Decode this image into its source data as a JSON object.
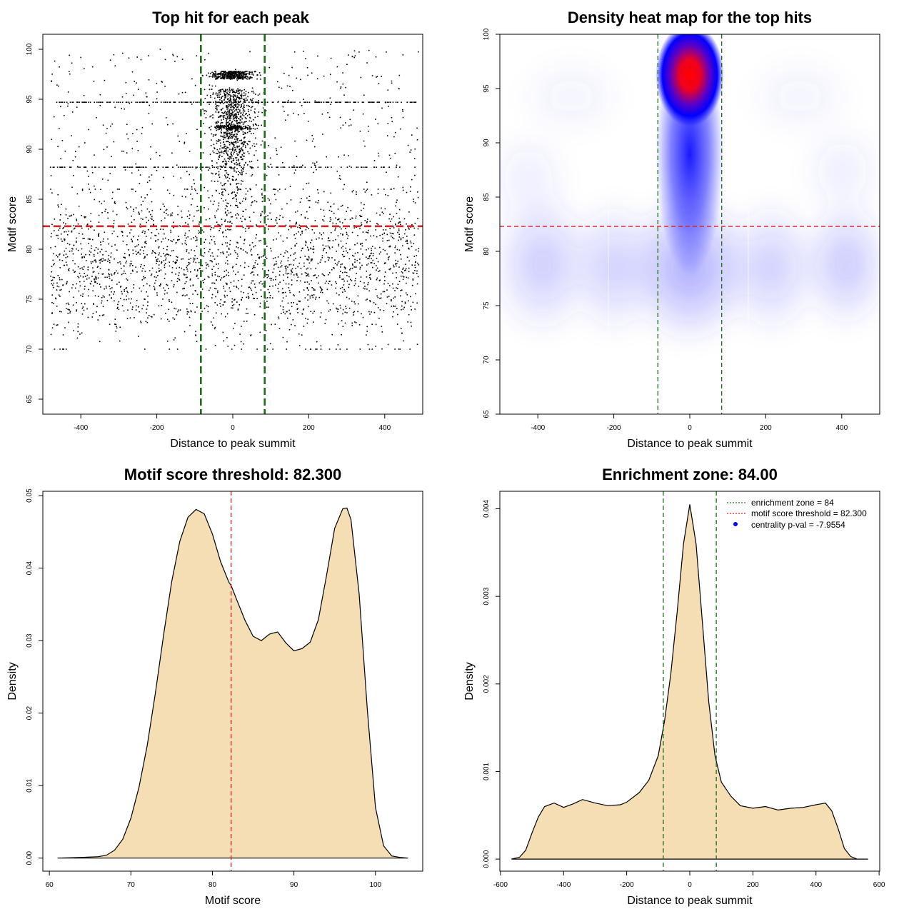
{
  "chart_data": [
    {
      "type": "scatter",
      "title": "Top hit for each peak",
      "xlabel": "Distance to peak summit",
      "ylabel": "Motif score",
      "xlim": [
        -500,
        500
      ],
      "ylim": [
        63.5,
        101.5
      ],
      "x_ticks": [
        "-400",
        "-200",
        "0",
        "200",
        "400"
      ],
      "x_tick_values": [
        -400,
        -200,
        0,
        200,
        400
      ],
      "y_ticks": [
        "65",
        "70",
        "75",
        "80",
        "85",
        "90",
        "95",
        "100"
      ],
      "y_tick_values": [
        65,
        70,
        75,
        80,
        85,
        90,
        95,
        100
      ],
      "hlines": [
        {
          "y": 82.3,
          "color": "#dd2222",
          "style": "dashed"
        }
      ],
      "vlines": [
        {
          "x": -84,
          "color": "#1a6e1a",
          "style": "dashed"
        },
        {
          "x": 84,
          "color": "#1a6e1a",
          "style": "dashed"
        }
      ],
      "point_color": "#000000",
      "approximate_point_count": 4000
    },
    {
      "type": "heatmap",
      "title": "Density heat map for the top hits",
      "xlabel": "Distance to peak summit",
      "ylabel": "Motif score",
      "xlim": [
        -500,
        500
      ],
      "ylim": [
        65,
        100
      ],
      "x_ticks": [
        "-400",
        "-200",
        "0",
        "200",
        "400"
      ],
      "x_tick_values": [
        -400,
        -200,
        0,
        200,
        400
      ],
      "y_ticks": [
        "65",
        "70",
        "75",
        "80",
        "85",
        "90",
        "95",
        "100"
      ],
      "y_tick_values": [
        65,
        70,
        75,
        80,
        85,
        90,
        95,
        100
      ],
      "hlines": [
        {
          "y": 82.3,
          "color": "#dd2222",
          "style": "dashed"
        }
      ],
      "vlines": [
        {
          "x": -84,
          "color": "#1a6e1a",
          "style": "dashed"
        },
        {
          "x": 84,
          "color": "#1a6e1a",
          "style": "dashed"
        }
      ],
      "color_scale": [
        "#ffffff",
        "#0000ff",
        "#ff0000"
      ],
      "density_peak": {
        "x": 0,
        "y": 96.5
      }
    },
    {
      "type": "area",
      "title": "Motif score threshold: 82.300",
      "xlabel": "Motif score",
      "ylabel": "Density",
      "xlim": [
        59.2,
        105.8
      ],
      "ylim": [
        -0.0018,
        0.0506
      ],
      "x_ticks": [
        "60",
        "70",
        "80",
        "90",
        "100"
      ],
      "x_tick_values": [
        60,
        70,
        80,
        90,
        100
      ],
      "y_ticks": [
        "0.00",
        "0.01",
        "0.02",
        "0.03",
        "0.04",
        "0.05"
      ],
      "y_tick_values": [
        0,
        0.01,
        0.02,
        0.03,
        0.04,
        0.05
      ],
      "fill_color": "#f5deb3",
      "vlines": [
        {
          "x": 82.3,
          "color": "#dd2222",
          "style": "dashed"
        }
      ],
      "x": [
        61,
        64,
        66,
        67,
        68,
        69,
        70,
        71,
        72,
        73,
        74,
        75,
        76,
        77,
        78,
        79,
        80,
        81,
        82,
        82.3,
        83,
        84,
        85,
        86,
        87,
        88,
        89,
        90,
        91,
        92,
        93,
        94,
        95,
        96,
        96.5,
        97,
        98,
        99,
        100,
        101,
        102,
        103,
        104
      ],
      "y": [
        0.0,
        0.0001,
        0.0002,
        0.0004,
        0.0011,
        0.0026,
        0.0055,
        0.0098,
        0.0155,
        0.0227,
        0.0307,
        0.0381,
        0.0437,
        0.047,
        0.0481,
        0.0475,
        0.0447,
        0.0409,
        0.0381,
        0.0376,
        0.0356,
        0.0328,
        0.0306,
        0.03,
        0.0309,
        0.0312,
        0.0297,
        0.0286,
        0.0289,
        0.0298,
        0.0329,
        0.039,
        0.0455,
        0.0482,
        0.0483,
        0.0467,
        0.0364,
        0.0205,
        0.007,
        0.0017,
        0.0003,
        0.0001,
        0.0
      ]
    },
    {
      "type": "area",
      "title": "Enrichment zone: 84.00",
      "xlabel": "Distance to peak summit",
      "ylabel": "Density",
      "xlim": [
        -602,
        602
      ],
      "ylim": [
        -0.000138,
        0.0042
      ],
      "x_ticks": [
        "-600",
        "-400",
        "-200",
        "0",
        "200",
        "400",
        "600"
      ],
      "x_tick_values": [
        -600,
        -400,
        -200,
        0,
        200,
        400,
        600
      ],
      "y_ticks": [
        "0.000",
        "0.001",
        "0.002",
        "0.003",
        "0.004"
      ],
      "y_tick_values": [
        0,
        0.001,
        0.002,
        0.003,
        0.004
      ],
      "fill_color": "#f5deb3",
      "vlines": [
        {
          "x": -84,
          "color": "#1a6e1a",
          "style": "dashed"
        },
        {
          "x": 84,
          "color": "#1a6e1a",
          "style": "dashed"
        }
      ],
      "x": [
        -565,
        -540,
        -520,
        -500,
        -480,
        -460,
        -430,
        -400,
        -370,
        -340,
        -300,
        -260,
        -220,
        -200,
        -160,
        -130,
        -100,
        -80,
        -60,
        -40,
        -20,
        0,
        20,
        40,
        60,
        80,
        100,
        130,
        160,
        200,
        240,
        280,
        320,
        360,
        400,
        430,
        450,
        470,
        490,
        510,
        530,
        565
      ],
      "y": [
        0.0,
        2e-05,
        0.0001,
        0.0003,
        0.00048,
        0.0006,
        0.00064,
        0.00059,
        0.00063,
        0.00068,
        0.00064,
        0.00061,
        0.00062,
        0.00065,
        0.00076,
        0.0009,
        0.00118,
        0.00158,
        0.00212,
        0.00282,
        0.0036,
        0.00405,
        0.0036,
        0.0027,
        0.0018,
        0.00118,
        0.00088,
        0.00072,
        0.00061,
        0.00058,
        0.0006,
        0.00056,
        0.00058,
        0.00059,
        0.00062,
        0.00064,
        0.00055,
        0.00035,
        0.00012,
        3e-05,
        0.0,
        0.0
      ],
      "legend": [
        {
          "label": "enrichment zone = 84",
          "color": "#1a6e1a",
          "style": "dotted-line"
        },
        {
          "label": "motif score threshold = 82.300",
          "color": "#dd2222",
          "style": "dotted-line"
        },
        {
          "label": "centrality p-val = -7.9554",
          "color": "#0000ff",
          "style": "point"
        }
      ],
      "legend_position": "top-right"
    }
  ]
}
